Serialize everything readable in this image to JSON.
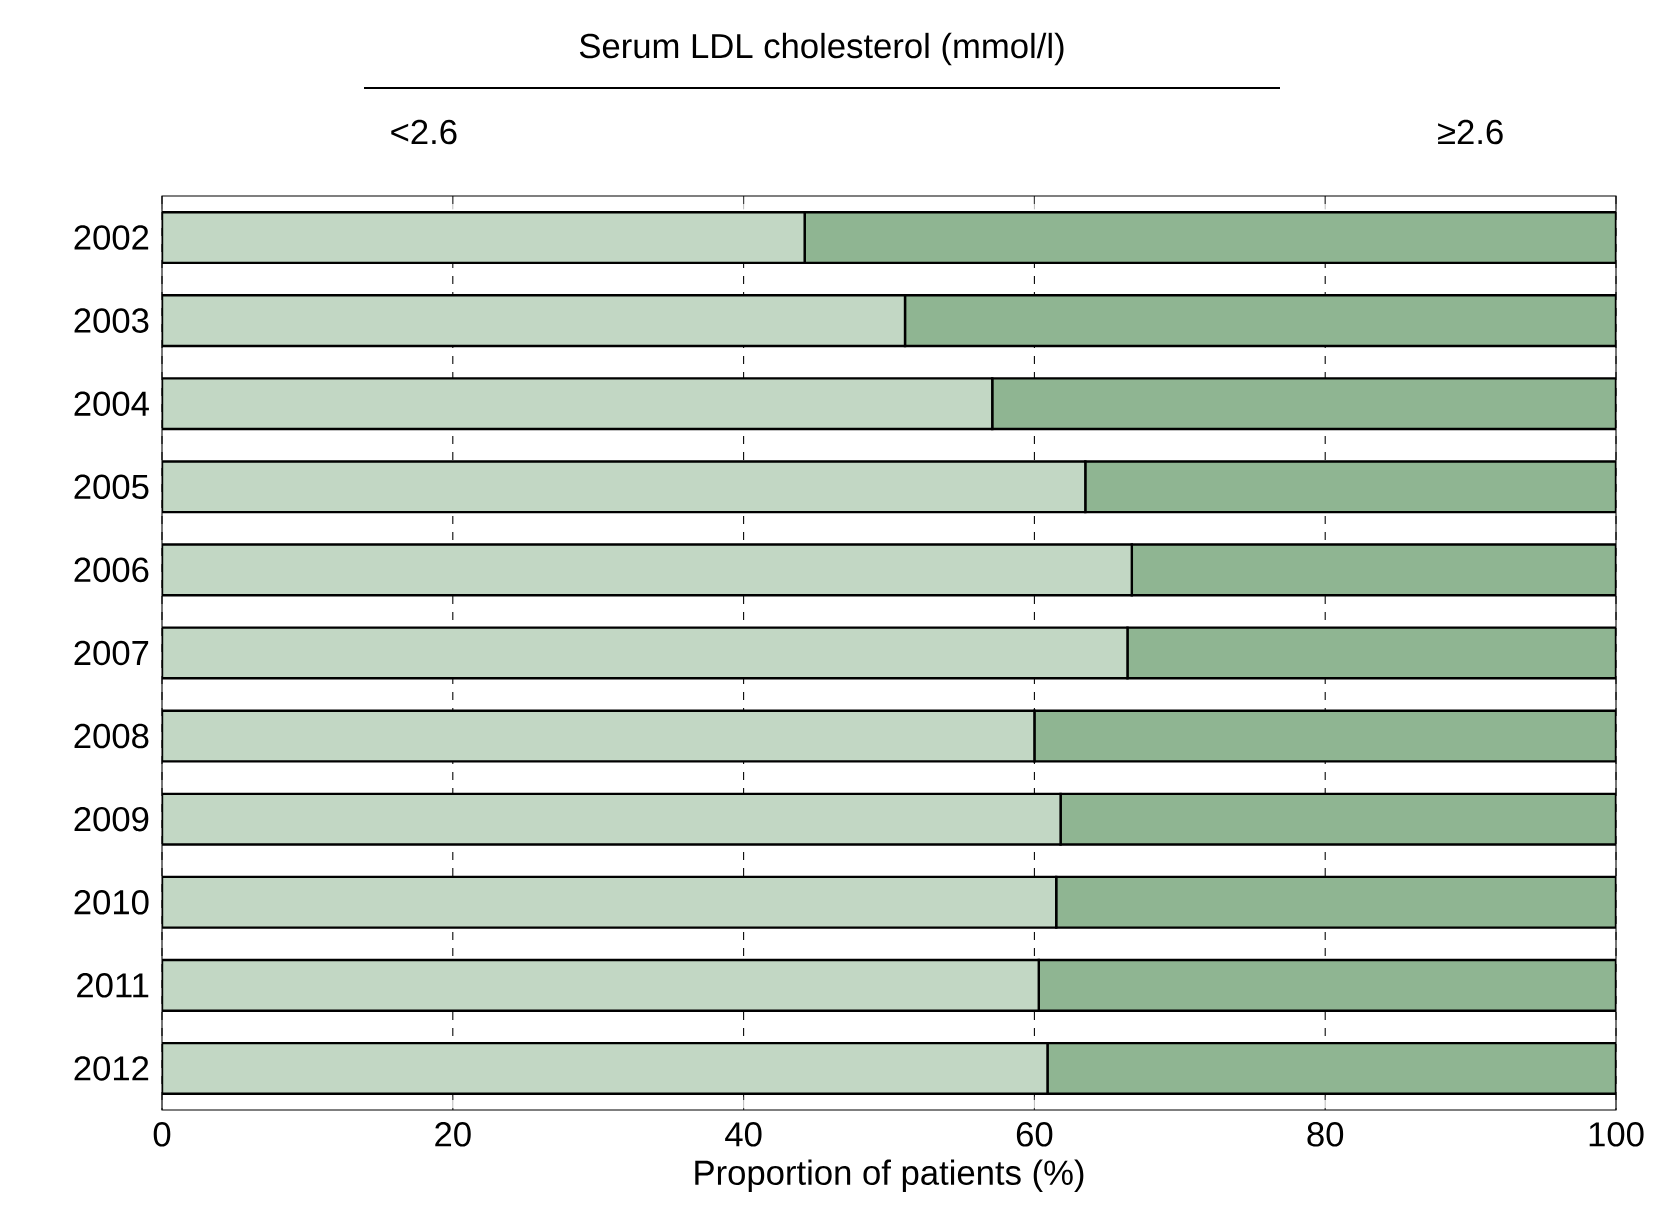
{
  "chart_data": {
    "type": "bar",
    "orientation": "horizontal",
    "stacked": true,
    "legend_title": "Serum LDL cholesterol (mmol/l)",
    "xlabel": "Proportion of patients (%)",
    "categories": [
      "2002",
      "2003",
      "2004",
      "2005",
      "2006",
      "2007",
      "2008",
      "2009",
      "2010",
      "2011",
      "2012"
    ],
    "series": [
      {
        "name": "<2.6",
        "color": "#c2d7c4",
        "values": [
          44.2,
          51.1,
          57.1,
          63.5,
          66.7,
          66.4,
          60.0,
          61.8,
          61.5,
          60.3,
          60.9
        ]
      },
      {
        "name": "≥2.6",
        "color": "#8fb592",
        "values": [
          55.8,
          48.9,
          42.9,
          36.5,
          33.3,
          33.6,
          40.0,
          38.2,
          38.5,
          39.7,
          39.1
        ]
      }
    ],
    "xlim": [
      0,
      100
    ],
    "xticks": [
      0,
      20,
      40,
      60,
      80,
      100
    ],
    "grid": "x",
    "legend": "top"
  }
}
